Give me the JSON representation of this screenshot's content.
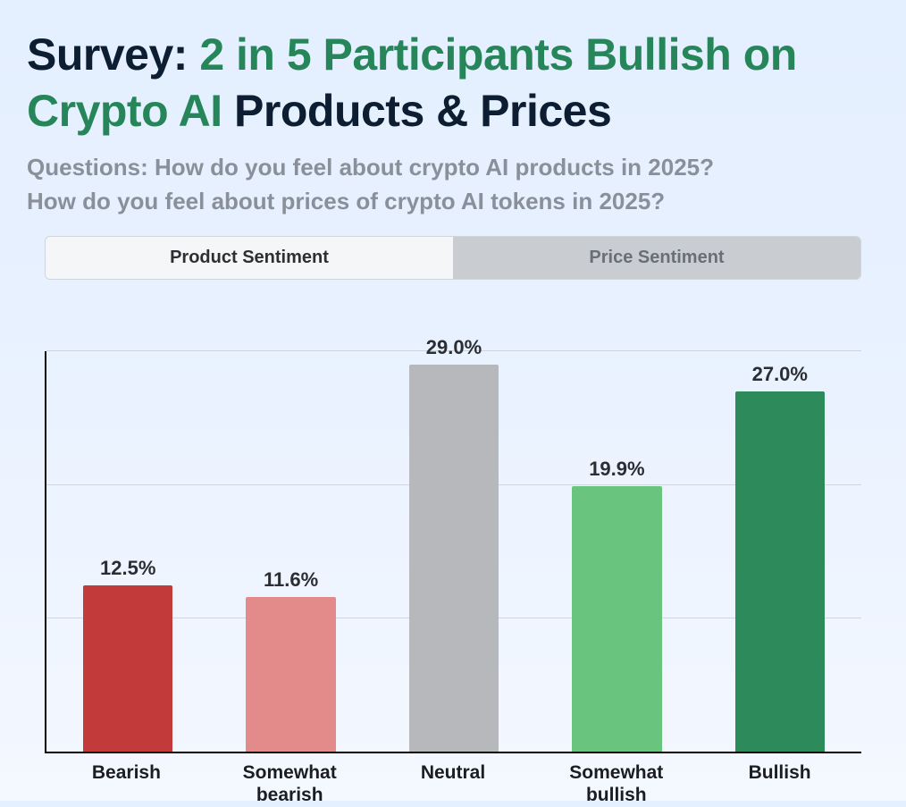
{
  "heading": {
    "part1_dark": "Survey: ",
    "part2_green": "2 in 5 Participants Bullish on Crypto AI ",
    "part3_dark": "Products & Prices"
  },
  "subtitle_line1": "Questions: How do you feel about crypto AI products in 2025?",
  "subtitle_line2": "How do you feel about prices of crypto AI tokens in 2025?",
  "tabs": {
    "product": "Product Sentiment",
    "price": "Price Sentiment",
    "active": "product"
  },
  "chart": {
    "type": "bar",
    "background_color": "transparent",
    "axis_color": "#000000",
    "grid_color": "#b8bcc2",
    "ylim": [
      0,
      30
    ],
    "gridlines_at": [
      10,
      20,
      30
    ],
    "bar_width_pct": 0.55,
    "value_label_fontsize": 22,
    "xlabel_fontsize": 21,
    "data": [
      {
        "category": "Bearish",
        "value": 12.5,
        "label": "12.5%",
        "color": "#c23a3a"
      },
      {
        "category": "Somewhat\nbearish",
        "value": 11.6,
        "label": "11.6%",
        "color": "#e38b8b"
      },
      {
        "category": "Neutral",
        "value": 29.0,
        "label": "29.0%",
        "color": "#b6b8bb"
      },
      {
        "category": "Somewhat\nbullish",
        "value": 19.9,
        "label": "19.9%",
        "color": "#69c47d"
      },
      {
        "category": "Bullish",
        "value": 27.0,
        "label": "27.0%",
        "color": "#2d8a5a"
      }
    ]
  }
}
